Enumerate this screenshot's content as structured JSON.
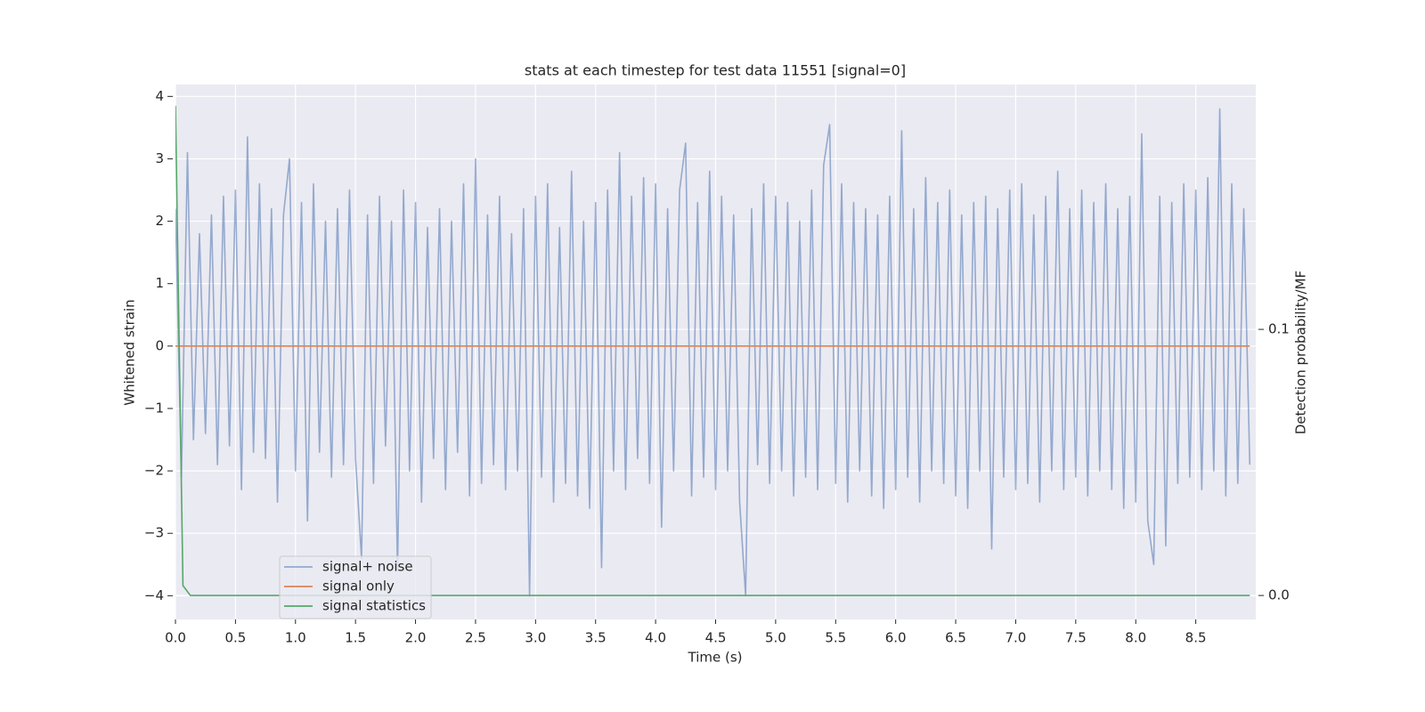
{
  "chart_data": {
    "type": "line",
    "title": "stats at each timestep for test data 11551 [signal=0]",
    "x_label": "Time (s)",
    "y_label": "Whitened strain",
    "y2_label": "Detection probability/MF",
    "background": "#eaeaf2",
    "grid": true,
    "legend": "lower left",
    "xlim": [
      0,
      9.0
    ],
    "ylim": [
      -4.38,
      4.19
    ],
    "y2lim": [
      -0.009,
      0.192
    ],
    "xticks": [
      {
        "value": 0,
        "label": "0.0"
      },
      0.5,
      {
        "value": 1,
        "label": "1.0"
      },
      1.5,
      {
        "value": 2,
        "label": "2.0"
      },
      2.5,
      {
        "value": 3,
        "label": "3.0"
      },
      3.5,
      {
        "value": 4,
        "label": "4.0"
      },
      4.5,
      {
        "value": 5,
        "label": "5.0"
      },
      5.5,
      {
        "value": 6,
        "label": "6.0"
      },
      6.5,
      {
        "value": 7,
        "label": "7.0"
      },
      7.5,
      {
        "value": 8,
        "label": "8.0"
      },
      8.5
    ],
    "yticks": [
      {
        "value": -4,
        "label": "−4"
      },
      {
        "value": -3,
        "label": "−3"
      },
      {
        "value": -2,
        "label": "−2"
      },
      {
        "value": -1,
        "label": "−1"
      },
      0,
      1,
      2,
      3,
      4
    ],
    "y2ticks": [
      {
        "value": 0,
        "label": "0.0"
      },
      0.1
    ],
    "series": [
      {
        "name": "signal+ noise",
        "color": "#4c72b0",
        "alpha": 0.55,
        "axis": "y",
        "x": [
          0,
          0.05,
          0.1,
          0.15,
          0.2,
          0.25,
          0.3,
          0.35,
          0.4,
          0.45,
          0.5,
          0.55,
          0.6,
          0.65,
          0.7,
          0.75,
          0.8,
          0.85,
          0.9,
          0.95,
          1,
          1.05,
          1.1,
          1.15,
          1.2,
          1.25,
          1.3,
          1.35,
          1.4,
          1.45,
          1.5,
          1.55,
          1.6,
          1.65,
          1.7,
          1.75,
          1.8,
          1.85,
          1.9,
          1.95,
          2,
          2.05,
          2.1,
          2.15,
          2.2,
          2.25,
          2.3,
          2.35,
          2.4,
          2.45,
          2.5,
          2.55,
          2.6,
          2.65,
          2.7,
          2.75,
          2.8,
          2.85,
          2.9,
          2.95,
          3,
          3.05,
          3.1,
          3.15,
          3.2,
          3.25,
          3.3,
          3.35,
          3.4,
          3.45,
          3.5,
          3.55,
          3.6,
          3.65,
          3.7,
          3.75,
          3.8,
          3.85,
          3.9,
          3.95,
          4,
          4.05,
          4.1,
          4.15,
          4.2,
          4.25,
          4.3,
          4.35,
          4.4,
          4.45,
          4.5,
          4.55,
          4.6,
          4.65,
          4.7,
          4.75,
          4.8,
          4.85,
          4.9,
          4.95,
          5,
          5.05,
          5.1,
          5.15,
          5.2,
          5.25,
          5.3,
          5.35,
          5.4,
          5.45,
          5.5,
          5.55,
          5.6,
          5.65,
          5.7,
          5.75,
          5.8,
          5.85,
          5.9,
          5.95,
          6,
          6.05,
          6.1,
          6.15,
          6.2,
          6.25,
          6.3,
          6.35,
          6.4,
          6.45,
          6.5,
          6.55,
          6.6,
          6.65,
          6.7,
          6.75,
          6.8,
          6.85,
          6.9,
          6.95,
          7,
          7.05,
          7.1,
          7.15,
          7.2,
          7.25,
          7.3,
          7.35,
          7.4,
          7.45,
          7.5,
          7.55,
          7.6,
          7.65,
          7.7,
          7.75,
          7.8,
          7.85,
          7.9,
          7.95,
          8,
          8.05,
          8.1,
          8.15,
          8.2,
          8.25,
          8.3,
          8.35,
          8.4,
          8.45,
          8.5,
          8.55,
          8.6,
          8.65,
          8.7,
          8.75,
          8.8,
          8.85,
          8.9,
          8.95
        ],
        "values": [
          2.2,
          -2.1,
          3.1,
          -1.5,
          1.8,
          -1.4,
          2.1,
          -1.9,
          2.4,
          -1.6,
          2.5,
          -2.3,
          3.35,
          -1.7,
          2.6,
          -1.8,
          2.2,
          -2.5,
          2.1,
          3.0,
          -2.0,
          2.3,
          -2.8,
          2.6,
          -1.7,
          2.0,
          -2.1,
          2.2,
          -1.9,
          2.5,
          -1.8,
          -3.4,
          2.1,
          -2.2,
          2.4,
          -1.6,
          2.0,
          -3.6,
          2.5,
          -2.0,
          2.3,
          -2.5,
          1.9,
          -1.8,
          2.2,
          -2.3,
          2.0,
          -1.7,
          2.6,
          -2.4,
          3.0,
          -2.2,
          2.1,
          -1.9,
          2.4,
          -2.3,
          1.8,
          -2.0,
          2.2,
          -4.0,
          2.4,
          -2.1,
          2.6,
          -2.5,
          1.9,
          -2.2,
          2.8,
          -2.4,
          2.0,
          -2.6,
          2.3,
          -3.55,
          2.5,
          -2.0,
          3.1,
          -2.3,
          2.4,
          -1.8,
          2.7,
          -2.2,
          2.6,
          -2.9,
          2.2,
          -2.0,
          2.5,
          3.25,
          -2.4,
          2.3,
          -2.1,
          2.8,
          -2.3,
          2.4,
          -2.0,
          2.1,
          -2.5,
          -4.0,
          2.2,
          -1.9,
          2.6,
          -2.2,
          2.4,
          -2.0,
          2.3,
          -2.4,
          2.0,
          -2.1,
          2.5,
          -2.3,
          2.9,
          3.55,
          -2.2,
          2.6,
          -2.5,
          2.3,
          -2.0,
          2.2,
          -2.4,
          2.1,
          -2.6,
          2.4,
          -2.3,
          3.45,
          -2.1,
          2.2,
          -2.5,
          2.7,
          -2.0,
          2.3,
          -2.2,
          2.5,
          -2.4,
          2.1,
          -2.6,
          2.3,
          -2.0,
          2.4,
          -3.25,
          2.2,
          -2.1,
          2.5,
          -2.3,
          2.6,
          -2.2,
          2.1,
          -2.5,
          2.4,
          -2.0,
          2.8,
          -2.3,
          2.2,
          -2.1,
          2.5,
          -2.4,
          2.3,
          -2.0,
          2.6,
          -2.3,
          2.2,
          -2.6,
          2.4,
          -2.5,
          3.4,
          -2.8,
          -3.5,
          2.4,
          -3.2,
          2.3,
          -2.2,
          2.6,
          -2.1,
          2.5,
          -2.3,
          2.7,
          -2.0,
          3.8,
          -2.4,
          2.6,
          -2.2,
          2.2,
          -1.9
        ]
      },
      {
        "name": "signal only",
        "color": "#dd8452",
        "alpha": 1,
        "axis": "y",
        "x": [
          0,
          8.95
        ],
        "values": [
          0,
          0
        ]
      },
      {
        "name": "signal statistics",
        "color": "#55a868",
        "alpha": 1,
        "axis": "y2",
        "x": [
          0,
          0.0625,
          0.125,
          8.95
        ],
        "values": [
          0.184,
          0.0037,
          0,
          0
        ]
      }
    ]
  }
}
